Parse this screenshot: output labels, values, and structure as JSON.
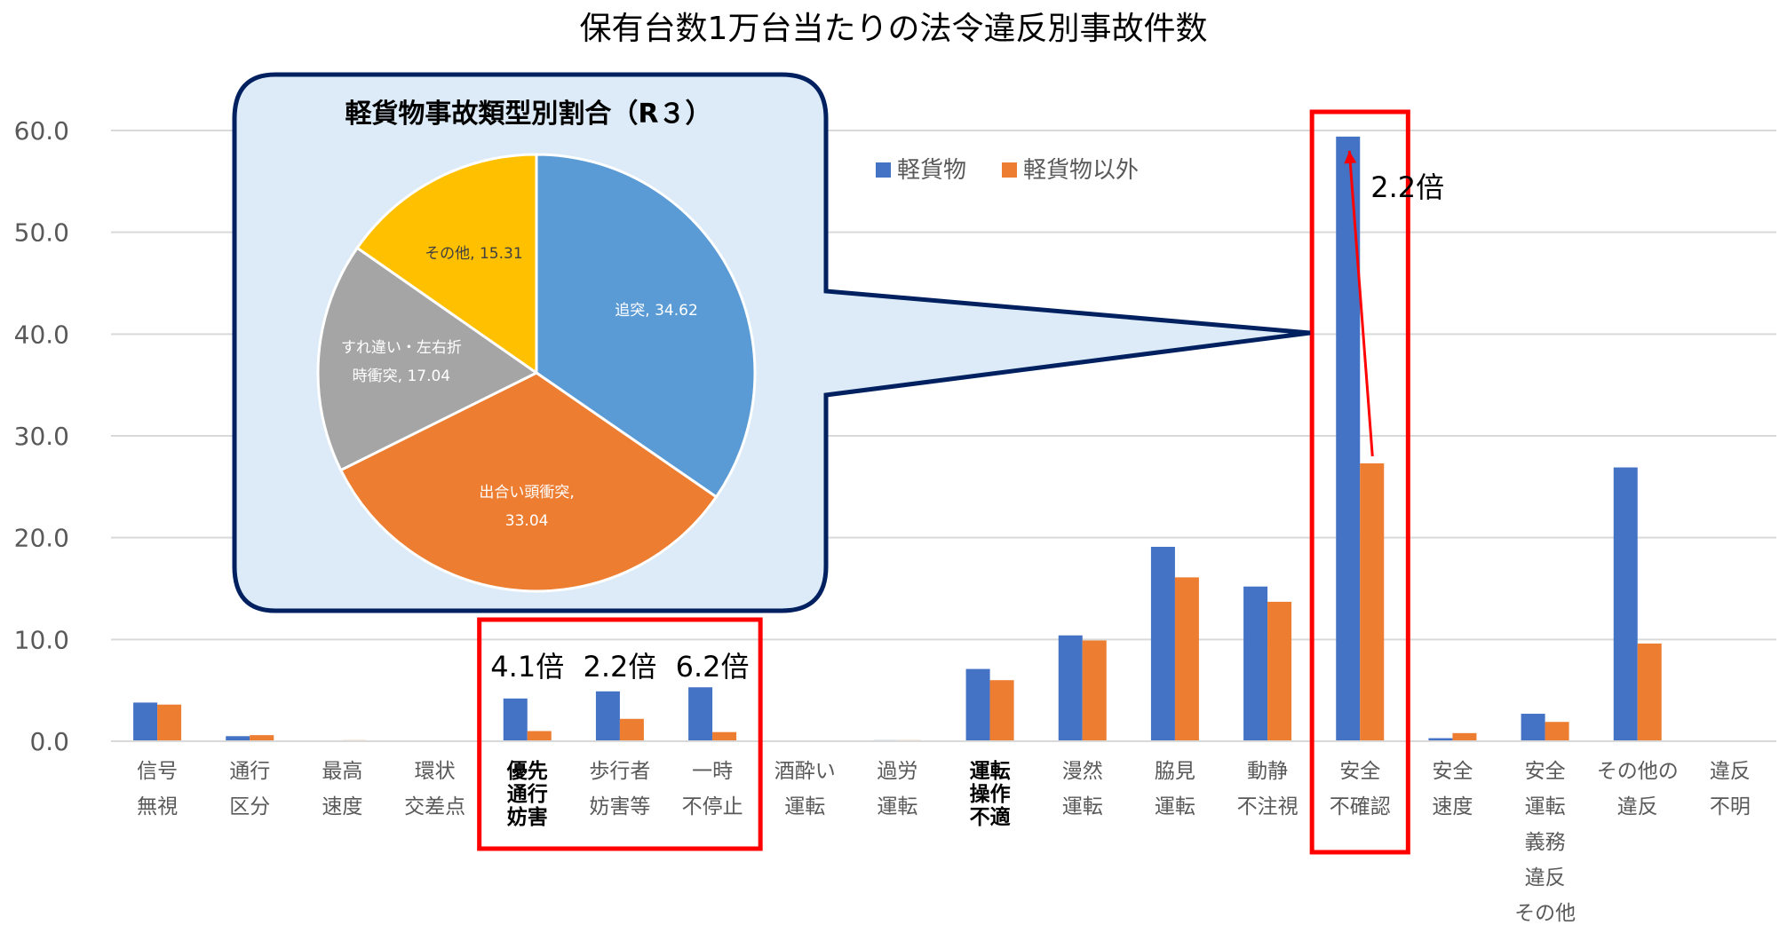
{
  "chart_data": [
    {
      "type": "bar",
      "title": "保有台数1万台当たりの法令違反別事故件数",
      "xlabel": "",
      "ylabel": "",
      "ylim": [
        0,
        60
      ],
      "yticks": [
        "0.0",
        "10.0",
        "20.0",
        "30.0",
        "40.0",
        "50.0",
        "60.0"
      ],
      "grid": true,
      "legend_position": "top-center",
      "categories": [
        [
          "信号",
          "無視"
        ],
        [
          "通行",
          "区分"
        ],
        [
          "最高",
          "速度"
        ],
        [
          "環状",
          "交差点"
        ],
        [
          "優先",
          "通行",
          "妨害"
        ],
        [
          "歩行者",
          "妨害等"
        ],
        [
          "一時",
          "不停止"
        ],
        [
          "酒酔い",
          "運転"
        ],
        [
          "過労",
          "運転"
        ],
        [
          "運転",
          "操作",
          "不適"
        ],
        [
          "漫然",
          "運転"
        ],
        [
          "脇見",
          "運転"
        ],
        [
          "動静",
          "不注視"
        ],
        [
          "安全",
          "不確認"
        ],
        [
          "安全",
          "速度"
        ],
        [
          "安全",
          "運転",
          "義務",
          "違反",
          "その他"
        ],
        [
          "その他の",
          "違反"
        ],
        [
          "違反",
          "不明"
        ]
      ],
      "bold_categories": [
        4,
        9
      ],
      "series": [
        {
          "name": "軽貨物",
          "color": "#4472C4",
          "values": [
            3.8,
            0.5,
            0.0,
            0.0,
            4.2,
            4.9,
            5.3,
            0.0,
            0.1,
            7.1,
            10.4,
            19.1,
            15.2,
            59.4,
            0.3,
            2.7,
            26.9,
            0.0
          ]
        },
        {
          "name": "軽貨物以外",
          "color": "#ED7D31",
          "values": [
            3.6,
            0.6,
            0.1,
            0.0,
            1.0,
            2.2,
            0.9,
            0.0,
            0.1,
            6.0,
            9.9,
            16.1,
            13.7,
            27.3,
            0.8,
            1.9,
            9.6,
            0.0
          ]
        }
      ],
      "annotations": {
        "ratio_labels": [
          {
            "category_index": 4,
            "text": "4.1倍"
          },
          {
            "category_index": 5,
            "text": "2.2倍"
          },
          {
            "category_index": 6,
            "text": "6.2倍"
          },
          {
            "category_index": 13,
            "text": "2.2倍"
          }
        ],
        "highlight_box_color": "#FF0000"
      }
    },
    {
      "type": "pie",
      "title": "軽貨物事故類型別割合（R３）",
      "slices": [
        {
          "label": "追突",
          "value": 34.62,
          "color": "#5B9BD5",
          "value_text": "34.62"
        },
        {
          "label": "出合い頭衝突",
          "value": 33.04,
          "color": "#ED7D31",
          "value_text": "33.04"
        },
        {
          "label": "すれ違い・左右折時衝突",
          "value": 17.04,
          "color": "#A5A5A5",
          "value_text": "17.04"
        },
        {
          "label": "その他",
          "value": 15.31,
          "color": "#FFC000",
          "value_text": "15.31"
        }
      ],
      "callout_fill": "#DCEBF7",
      "callout_border": "#002060"
    }
  ]
}
